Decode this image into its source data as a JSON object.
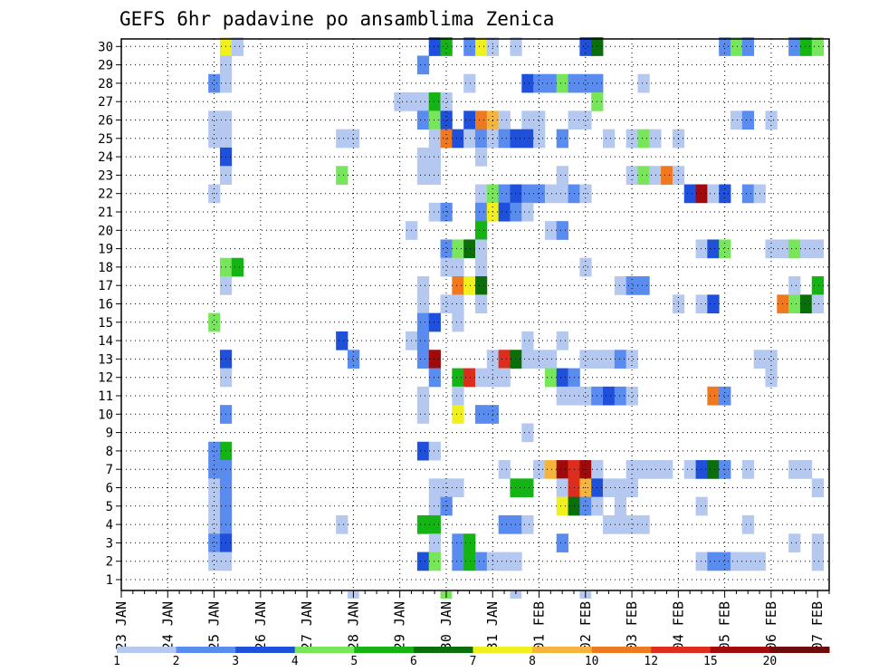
{
  "chart_data": {
    "type": "heatmap",
    "title": "GEFS 6hr padavine po ansamblima Zenica",
    "x_tick_labels": [
      "23 JAN",
      "24 JAN",
      "25 JAN",
      "26 JAN",
      "27 JAN",
      "28 JAN",
      "29 JAN",
      "30 JAN",
      "31 JAN",
      "01 FEB",
      "02 FEB",
      "03 FEB",
      "04 FEB",
      "05 FEB",
      "06 FEB",
      "07 FEB"
    ],
    "y_tick_labels": [
      "1",
      "2",
      "3",
      "4",
      "5",
      "6",
      "7",
      "8",
      "9",
      "10",
      "11",
      "12",
      "13",
      "14",
      "15",
      "16",
      "17",
      "18",
      "19",
      "20",
      "21",
      "22",
      "23",
      "24",
      "25",
      "26",
      "27",
      "28",
      "29",
      "30"
    ],
    "ylim": [
      1,
      30
    ],
    "x_step": "6hr",
    "grid": true,
    "colorbar": {
      "labels": [
        "1",
        "2",
        "3",
        "4",
        "5",
        "6",
        "7",
        "8",
        "10",
        "12",
        "15",
        "20"
      ],
      "colors": [
        "#b4c8f0",
        "#5a8cf0",
        "#1e50dc",
        "#78e65a",
        "#14b414",
        "#0a6e0a",
        "#f0f01e",
        "#f5b43c",
        "#f0781e",
        "#dc2d1e",
        "#a00a0a",
        "#6e0a0a"
      ]
    },
    "cells": [
      [
        30,
        9,
        "#f0f01e"
      ],
      [
        30,
        10,
        "#b4c8f0"
      ],
      [
        30,
        27,
        "#1e50dc"
      ],
      [
        30,
        28,
        "#14b414"
      ],
      [
        30,
        30,
        "#5a8cf0"
      ],
      [
        30,
        31,
        "#f0f01e"
      ],
      [
        30,
        32,
        "#b4c8f0"
      ],
      [
        30,
        34,
        "#b4c8f0"
      ],
      [
        30,
        40,
        "#1e50dc"
      ],
      [
        30,
        41,
        "#0a6e0a"
      ],
      [
        30,
        52,
        "#5a8cf0"
      ],
      [
        30,
        53,
        "#78e65a"
      ],
      [
        30,
        54,
        "#5a8cf0"
      ],
      [
        30,
        58,
        "#5a8cf0"
      ],
      [
        30,
        59,
        "#14b414"
      ],
      [
        30,
        60,
        "#78e65a"
      ],
      [
        29,
        9,
        "#b4c8f0"
      ],
      [
        29,
        26,
        "#5a8cf0"
      ],
      [
        28,
        8,
        "#5a8cf0"
      ],
      [
        28,
        9,
        "#b4c8f0"
      ],
      [
        28,
        30,
        "#b4c8f0"
      ],
      [
        28,
        35,
        "#1e50dc"
      ],
      [
        28,
        36,
        "#5a8cf0"
      ],
      [
        28,
        37,
        "#5a8cf0"
      ],
      [
        28,
        38,
        "#78e65a"
      ],
      [
        28,
        39,
        "#5a8cf0"
      ],
      [
        28,
        40,
        "#5a8cf0"
      ],
      [
        28,
        41,
        "#5a8cf0"
      ],
      [
        28,
        45,
        "#b4c8f0"
      ],
      [
        27,
        24,
        "#b4c8f0"
      ],
      [
        27,
        25,
        "#b4c8f0"
      ],
      [
        27,
        26,
        "#b4c8f0"
      ],
      [
        27,
        27,
        "#14b414"
      ],
      [
        27,
        28,
        "#b4c8f0"
      ],
      [
        27,
        41,
        "#78e65a"
      ],
      [
        26,
        8,
        "#b4c8f0"
      ],
      [
        26,
        9,
        "#b4c8f0"
      ],
      [
        26,
        26,
        "#5a8cf0"
      ],
      [
        26,
        27,
        "#78e65a"
      ],
      [
        26,
        28,
        "#1e50dc"
      ],
      [
        26,
        30,
        "#1e50dc"
      ],
      [
        26,
        31,
        "#f0781e"
      ],
      [
        26,
        32,
        "#f5b43c"
      ],
      [
        26,
        33,
        "#b4c8f0"
      ],
      [
        26,
        35,
        "#b4c8f0"
      ],
      [
        26,
        36,
        "#b4c8f0"
      ],
      [
        26,
        39,
        "#b4c8f0"
      ],
      [
        26,
        40,
        "#b4c8f0"
      ],
      [
        26,
        53,
        "#b4c8f0"
      ],
      [
        26,
        54,
        "#5a8cf0"
      ],
      [
        26,
        56,
        "#b4c8f0"
      ],
      [
        25,
        8,
        "#b4c8f0"
      ],
      [
        25,
        9,
        "#b4c8f0"
      ],
      [
        25,
        19,
        "#b4c8f0"
      ],
      [
        25,
        20,
        "#b4c8f0"
      ],
      [
        25,
        27,
        "#b4c8f0"
      ],
      [
        25,
        28,
        "#f0781e"
      ],
      [
        25,
        29,
        "#1e50dc"
      ],
      [
        25,
        30,
        "#b4c8f0"
      ],
      [
        25,
        31,
        "#5a8cf0"
      ],
      [
        25,
        32,
        "#b4c8f0"
      ],
      [
        25,
        33,
        "#5a8cf0"
      ],
      [
        25,
        34,
        "#1e50dc"
      ],
      [
        25,
        35,
        "#1e50dc"
      ],
      [
        25,
        36,
        "#b4c8f0"
      ],
      [
        25,
        38,
        "#5a8cf0"
      ],
      [
        25,
        42,
        "#b4c8f0"
      ],
      [
        25,
        44,
        "#b4c8f0"
      ],
      [
        25,
        45,
        "#78e65a"
      ],
      [
        25,
        46,
        "#b4c8f0"
      ],
      [
        25,
        48,
        "#b4c8f0"
      ],
      [
        24,
        9,
        "#1e50dc"
      ],
      [
        24,
        26,
        "#b4c8f0"
      ],
      [
        24,
        27,
        "#b4c8f0"
      ],
      [
        24,
        31,
        "#b4c8f0"
      ],
      [
        23,
        9,
        "#b4c8f0"
      ],
      [
        23,
        19,
        "#78e65a"
      ],
      [
        23,
        26,
        "#b4c8f0"
      ],
      [
        23,
        27,
        "#b4c8f0"
      ],
      [
        23,
        38,
        "#b4c8f0"
      ],
      [
        23,
        44,
        "#b4c8f0"
      ],
      [
        23,
        45,
        "#78e65a"
      ],
      [
        23,
        46,
        "#b4c8f0"
      ],
      [
        23,
        47,
        "#f0781e"
      ],
      [
        23,
        48,
        "#b4c8f0"
      ],
      [
        22,
        8,
        "#b4c8f0"
      ],
      [
        22,
        31,
        "#b4c8f0"
      ],
      [
        22,
        32,
        "#78e65a"
      ],
      [
        22,
        33,
        "#5a8cf0"
      ],
      [
        22,
        34,
        "#1e50dc"
      ],
      [
        22,
        35,
        "#5a8cf0"
      ],
      [
        22,
        36,
        "#5a8cf0"
      ],
      [
        22,
        37,
        "#b4c8f0"
      ],
      [
        22,
        38,
        "#b4c8f0"
      ],
      [
        22,
        39,
        "#5a8cf0"
      ],
      [
        22,
        40,
        "#b4c8f0"
      ],
      [
        22,
        49,
        "#1e50dc"
      ],
      [
        22,
        50,
        "#a00a0a"
      ],
      [
        22,
        51,
        "#b4c8f0"
      ],
      [
        22,
        52,
        "#1e50dc"
      ],
      [
        22,
        54,
        "#5a8cf0"
      ],
      [
        22,
        55,
        "#b4c8f0"
      ],
      [
        21,
        27,
        "#b4c8f0"
      ],
      [
        21,
        28,
        "#5a8cf0"
      ],
      [
        21,
        31,
        "#5a8cf0"
      ],
      [
        21,
        32,
        "#f0f01e"
      ],
      [
        21,
        33,
        "#1e50dc"
      ],
      [
        21,
        34,
        "#5a8cf0"
      ],
      [
        21,
        35,
        "#b4c8f0"
      ],
      [
        20,
        25,
        "#b4c8f0"
      ],
      [
        20,
        31,
        "#14b414"
      ],
      [
        20,
        37,
        "#b4c8f0"
      ],
      [
        20,
        38,
        "#5a8cf0"
      ],
      [
        19,
        28,
        "#5a8cf0"
      ],
      [
        19,
        29,
        "#78e65a"
      ],
      [
        19,
        30,
        "#0a6e0a"
      ],
      [
        19,
        31,
        "#b4c8f0"
      ],
      [
        19,
        50,
        "#b4c8f0"
      ],
      [
        19,
        51,
        "#1e50dc"
      ],
      [
        19,
        52,
        "#78e65a"
      ],
      [
        19,
        56,
        "#b4c8f0"
      ],
      [
        19,
        57,
        "#b4c8f0"
      ],
      [
        19,
        58,
        "#78e65a"
      ],
      [
        19,
        59,
        "#b4c8f0"
      ],
      [
        19,
        60,
        "#b4c8f0"
      ],
      [
        18,
        9,
        "#78e65a"
      ],
      [
        18,
        10,
        "#14b414"
      ],
      [
        18,
        28,
        "#b4c8f0"
      ],
      [
        18,
        29,
        "#b4c8f0"
      ],
      [
        18,
        31,
        "#b4c8f0"
      ],
      [
        18,
        40,
        "#b4c8f0"
      ],
      [
        17,
        9,
        "#b4c8f0"
      ],
      [
        17,
        26,
        "#b4c8f0"
      ],
      [
        17,
        29,
        "#f0781e"
      ],
      [
        17,
        30,
        "#f0f01e"
      ],
      [
        17,
        31,
        "#0a6e0a"
      ],
      [
        17,
        43,
        "#b4c8f0"
      ],
      [
        17,
        44,
        "#5a8cf0"
      ],
      [
        17,
        45,
        "#5a8cf0"
      ],
      [
        17,
        58,
        "#b4c8f0"
      ],
      [
        17,
        60,
        "#14b414"
      ],
      [
        16,
        26,
        "#b4c8f0"
      ],
      [
        16,
        28,
        "#b4c8f0"
      ],
      [
        16,
        29,
        "#b4c8f0"
      ],
      [
        16,
        31,
        "#b4c8f0"
      ],
      [
        16,
        48,
        "#b4c8f0"
      ],
      [
        16,
        50,
        "#b4c8f0"
      ],
      [
        16,
        51,
        "#1e50dc"
      ],
      [
        16,
        57,
        "#f0781e"
      ],
      [
        16,
        58,
        "#78e65a"
      ],
      [
        16,
        59,
        "#0a6e0a"
      ],
      [
        16,
        60,
        "#b4c8f0"
      ],
      [
        15,
        8,
        "#78e65a"
      ],
      [
        15,
        26,
        "#5a8cf0"
      ],
      [
        15,
        27,
        "#1e50dc"
      ],
      [
        15,
        29,
        "#b4c8f0"
      ],
      [
        14,
        19,
        "#1e50dc"
      ],
      [
        14,
        25,
        "#b4c8f0"
      ],
      [
        14,
        26,
        "#5a8cf0"
      ],
      [
        14,
        35,
        "#b4c8f0"
      ],
      [
        14,
        38,
        "#b4c8f0"
      ],
      [
        13,
        9,
        "#1e50dc"
      ],
      [
        13,
        20,
        "#5a8cf0"
      ],
      [
        13,
        26,
        "#5a8cf0"
      ],
      [
        13,
        27,
        "#a00a0a"
      ],
      [
        13,
        32,
        "#b4c8f0"
      ],
      [
        13,
        33,
        "#dc2d1e"
      ],
      [
        13,
        34,
        "#0a6e0a"
      ],
      [
        13,
        35,
        "#b4c8f0"
      ],
      [
        13,
        36,
        "#b4c8f0"
      ],
      [
        13,
        37,
        "#b4c8f0"
      ],
      [
        13,
        40,
        "#b4c8f0"
      ],
      [
        13,
        41,
        "#b4c8f0"
      ],
      [
        13,
        42,
        "#b4c8f0"
      ],
      [
        13,
        43,
        "#5a8cf0"
      ],
      [
        13,
        44,
        "#b4c8f0"
      ],
      [
        13,
        55,
        "#b4c8f0"
      ],
      [
        13,
        56,
        "#b4c8f0"
      ],
      [
        12,
        9,
        "#b4c8f0"
      ],
      [
        12,
        27,
        "#5a8cf0"
      ],
      [
        12,
        29,
        "#14b414"
      ],
      [
        12,
        30,
        "#dc2d1e"
      ],
      [
        12,
        31,
        "#b4c8f0"
      ],
      [
        12,
        32,
        "#b4c8f0"
      ],
      [
        12,
        33,
        "#b4c8f0"
      ],
      [
        12,
        37,
        "#78e65a"
      ],
      [
        12,
        38,
        "#1e50dc"
      ],
      [
        12,
        39,
        "#5a8cf0"
      ],
      [
        12,
        56,
        "#b4c8f0"
      ],
      [
        11,
        26,
        "#b4c8f0"
      ],
      [
        11,
        29,
        "#b4c8f0"
      ],
      [
        11,
        38,
        "#b4c8f0"
      ],
      [
        11,
        39,
        "#b4c8f0"
      ],
      [
        11,
        40,
        "#b4c8f0"
      ],
      [
        11,
        41,
        "#5a8cf0"
      ],
      [
        11,
        42,
        "#1e50dc"
      ],
      [
        11,
        43,
        "#5a8cf0"
      ],
      [
        11,
        44,
        "#b4c8f0"
      ],
      [
        11,
        51,
        "#f0781e"
      ],
      [
        11,
        52,
        "#5a8cf0"
      ],
      [
        10,
        9,
        "#5a8cf0"
      ],
      [
        10,
        26,
        "#b4c8f0"
      ],
      [
        10,
        29,
        "#f0f01e"
      ],
      [
        10,
        31,
        "#5a8cf0"
      ],
      [
        10,
        32,
        "#5a8cf0"
      ],
      [
        9,
        35,
        "#b4c8f0"
      ],
      [
        8,
        8,
        "#5a8cf0"
      ],
      [
        8,
        9,
        "#14b414"
      ],
      [
        8,
        26,
        "#1e50dc"
      ],
      [
        8,
        27,
        "#b4c8f0"
      ],
      [
        7,
        8,
        "#5a8cf0"
      ],
      [
        7,
        9,
        "#5a8cf0"
      ],
      [
        7,
        33,
        "#b4c8f0"
      ],
      [
        7,
        36,
        "#b4c8f0"
      ],
      [
        7,
        37,
        "#f5b43c"
      ],
      [
        7,
        38,
        "#a00a0a"
      ],
      [
        7,
        39,
        "#dc2d1e"
      ],
      [
        7,
        40,
        "#a00a0a"
      ],
      [
        7,
        41,
        "#b4c8f0"
      ],
      [
        7,
        44,
        "#b4c8f0"
      ],
      [
        7,
        45,
        "#b4c8f0"
      ],
      [
        7,
        46,
        "#b4c8f0"
      ],
      [
        7,
        47,
        "#b4c8f0"
      ],
      [
        7,
        49,
        "#b4c8f0"
      ],
      [
        7,
        50,
        "#1e50dc"
      ],
      [
        7,
        51,
        "#0a6e0a"
      ],
      [
        7,
        52,
        "#5a8cf0"
      ],
      [
        7,
        54,
        "#b4c8f0"
      ],
      [
        7,
        58,
        "#b4c8f0"
      ],
      [
        7,
        59,
        "#b4c8f0"
      ],
      [
        6,
        8,
        "#b4c8f0"
      ],
      [
        6,
        9,
        "#5a8cf0"
      ],
      [
        6,
        27,
        "#b4c8f0"
      ],
      [
        6,
        28,
        "#b4c8f0"
      ],
      [
        6,
        29,
        "#b4c8f0"
      ],
      [
        6,
        34,
        "#14b414"
      ],
      [
        6,
        35,
        "#14b414"
      ],
      [
        6,
        38,
        "#b4c8f0"
      ],
      [
        6,
        39,
        "#dc2d1e"
      ],
      [
        6,
        40,
        "#f5b43c"
      ],
      [
        6,
        41,
        "#1e50dc"
      ],
      [
        6,
        42,
        "#b4c8f0"
      ],
      [
        6,
        43,
        "#b4c8f0"
      ],
      [
        6,
        44,
        "#b4c8f0"
      ],
      [
        6,
        60,
        "#b4c8f0"
      ],
      [
        5,
        8,
        "#b4c8f0"
      ],
      [
        5,
        9,
        "#5a8cf0"
      ],
      [
        5,
        27,
        "#b4c8f0"
      ],
      [
        5,
        28,
        "#5a8cf0"
      ],
      [
        5,
        38,
        "#f0f01e"
      ],
      [
        5,
        39,
        "#0a6e0a"
      ],
      [
        5,
        40,
        "#5a8cf0"
      ],
      [
        5,
        41,
        "#b4c8f0"
      ],
      [
        5,
        43,
        "#b4c8f0"
      ],
      [
        5,
        50,
        "#b4c8f0"
      ],
      [
        4,
        8,
        "#b4c8f0"
      ],
      [
        4,
        9,
        "#5a8cf0"
      ],
      [
        4,
        19,
        "#b4c8f0"
      ],
      [
        4,
        26,
        "#14b414"
      ],
      [
        4,
        27,
        "#14b414"
      ],
      [
        4,
        33,
        "#5a8cf0"
      ],
      [
        4,
        34,
        "#5a8cf0"
      ],
      [
        4,
        35,
        "#b4c8f0"
      ],
      [
        4,
        42,
        "#b4c8f0"
      ],
      [
        4,
        43,
        "#b4c8f0"
      ],
      [
        4,
        44,
        "#b4c8f0"
      ],
      [
        4,
        45,
        "#b4c8f0"
      ],
      [
        4,
        54,
        "#b4c8f0"
      ],
      [
        3,
        8,
        "#5a8cf0"
      ],
      [
        3,
        9,
        "#1e50dc"
      ],
      [
        3,
        27,
        "#b4c8f0"
      ],
      [
        3,
        29,
        "#5a8cf0"
      ],
      [
        3,
        30,
        "#14b414"
      ],
      [
        3,
        38,
        "#5a8cf0"
      ],
      [
        3,
        58,
        "#b4c8f0"
      ],
      [
        3,
        60,
        "#b4c8f0"
      ],
      [
        2,
        8,
        "#b4c8f0"
      ],
      [
        2,
        9,
        "#b4c8f0"
      ],
      [
        2,
        26,
        "#1e50dc"
      ],
      [
        2,
        27,
        "#78e65a"
      ],
      [
        2,
        29,
        "#5a8cf0"
      ],
      [
        2,
        30,
        "#14b414"
      ],
      [
        2,
        31,
        "#5a8cf0"
      ],
      [
        2,
        32,
        "#b4c8f0"
      ],
      [
        2,
        33,
        "#b4c8f0"
      ],
      [
        2,
        34,
        "#b4c8f0"
      ],
      [
        2,
        50,
        "#b4c8f0"
      ],
      [
        2,
        51,
        "#5a8cf0"
      ],
      [
        2,
        52,
        "#5a8cf0"
      ],
      [
        2,
        53,
        "#b4c8f0"
      ],
      [
        2,
        54,
        "#b4c8f0"
      ],
      [
        2,
        55,
        "#b4c8f0"
      ],
      [
        2,
        60,
        "#b4c8f0"
      ]
    ],
    "below_axis_cells": [
      [
        20,
        "#b4c8f0"
      ],
      [
        28,
        "#78e65a"
      ],
      [
        34,
        "#b4c8f0"
      ],
      [
        40,
        "#b4c8f0"
      ]
    ]
  }
}
